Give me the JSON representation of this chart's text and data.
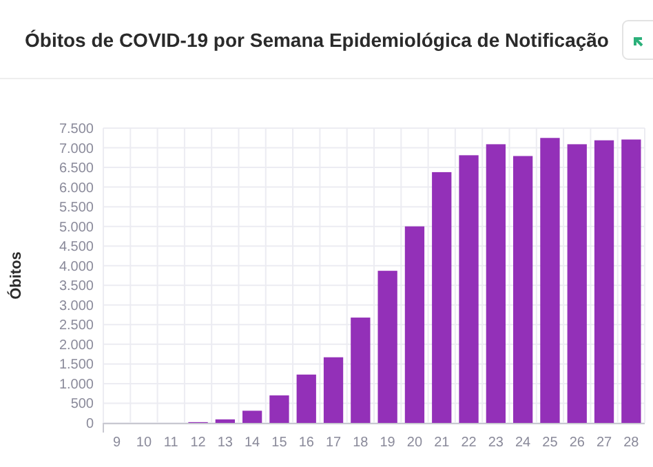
{
  "chart_data": {
    "type": "bar",
    "title": "Óbitos de COVID-19 por Semana Epidemiológica de Notificação",
    "ylabel": "Óbitos",
    "categories": [
      "9",
      "10",
      "11",
      "12",
      "13",
      "14",
      "15",
      "16",
      "17",
      "18",
      "19",
      "20",
      "21",
      "22",
      "23",
      "24",
      "25",
      "26",
      "27",
      "28"
    ],
    "values": [
      0,
      0,
      0,
      20,
      90,
      310,
      700,
      1230,
      1670,
      2680,
      3870,
      5000,
      6380,
      6810,
      7090,
      6790,
      7250,
      7090,
      7190,
      7210
    ],
    "color": "#9330b8",
    "ylim": [
      0,
      7500
    ],
    "yticks": [
      0,
      {
        "value": 500,
        "label": "500"
      },
      {
        "value": 1000,
        "label": "1.000"
      },
      {
        "value": 1500,
        "label": "1.500"
      },
      {
        "value": 2000,
        "label": "2.000"
      },
      {
        "value": 2500,
        "label": "2.500"
      },
      {
        "value": 3000,
        "label": "3.000"
      },
      {
        "value": 3500,
        "label": "3.500"
      },
      {
        "value": 4000,
        "label": "4.000"
      },
      {
        "value": 4500,
        "label": "4.500"
      },
      {
        "value": 5000,
        "label": "5.000"
      },
      {
        "value": 5500,
        "label": "5.500"
      },
      {
        "value": 6000,
        "label": "6.000"
      },
      {
        "value": 6500,
        "label": "6.500"
      },
      {
        "value": 7000,
        "label": "7.000"
      },
      {
        "value": 7500,
        "label": "7.500"
      }
    ],
    "grid": true
  }
}
